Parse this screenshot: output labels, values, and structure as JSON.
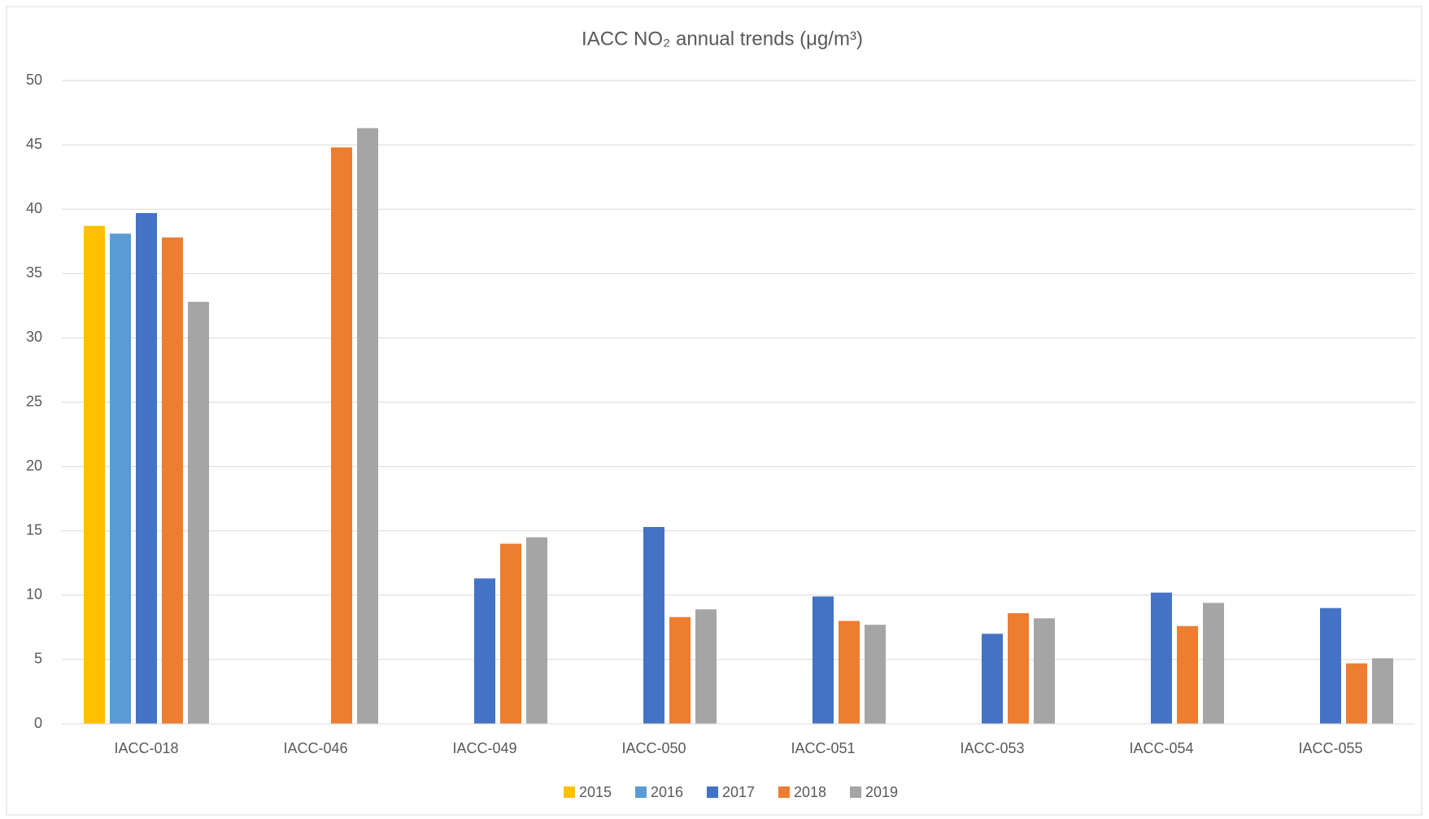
{
  "chart_data": {
    "type": "bar",
    "title": "IACC NO₂ annual trends (μg/m³)",
    "categories": [
      "IACC-018",
      "IACC-046",
      "IACC-049",
      "IACC-050",
      "IACC-051",
      "IACC-053",
      "IACC-054",
      "IACC-055"
    ],
    "series": [
      {
        "name": "2015",
        "color": "#ffc000",
        "values": [
          38.7,
          null,
          null,
          null,
          null,
          null,
          null,
          null
        ]
      },
      {
        "name": "2016",
        "color": "#5b9bd5",
        "values": [
          38.1,
          null,
          null,
          null,
          null,
          null,
          null,
          null
        ]
      },
      {
        "name": "2017",
        "color": "#4472c4",
        "values": [
          39.7,
          null,
          11.3,
          15.3,
          9.9,
          7.0,
          10.2,
          9.0
        ]
      },
      {
        "name": "2018",
        "color": "#ed7d31",
        "values": [
          37.8,
          44.8,
          14.0,
          8.3,
          8.0,
          8.6,
          7.6,
          4.7
        ]
      },
      {
        "name": "2019",
        "color": "#a5a5a5",
        "values": [
          32.8,
          46.3,
          14.5,
          8.9,
          7.7,
          8.2,
          9.4,
          5.1
        ]
      }
    ],
    "ylim": [
      0,
      50
    ],
    "yticks": [
      0,
      5,
      10,
      15,
      20,
      25,
      30,
      35,
      40,
      45,
      50
    ],
    "grid": true,
    "legend": "bottom"
  }
}
